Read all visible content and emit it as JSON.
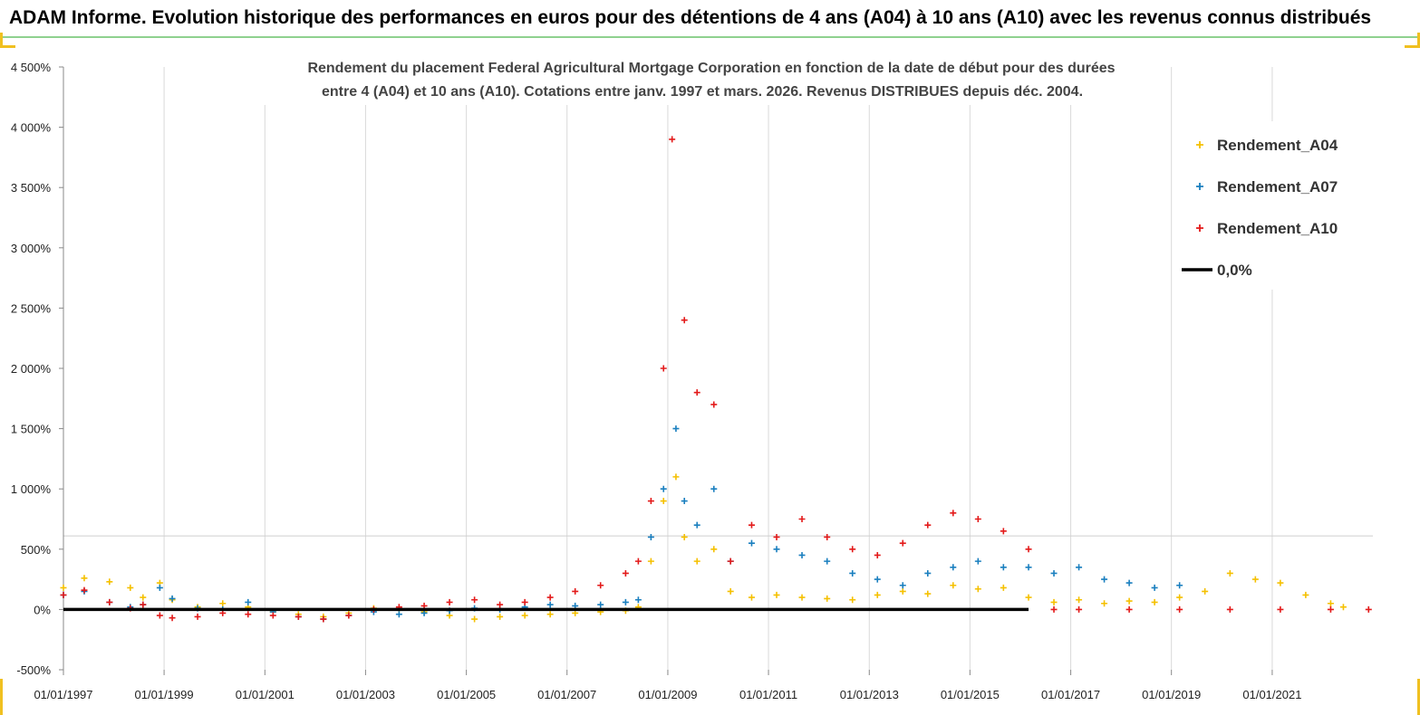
{
  "header": {
    "title": "ADAM Informe. Evolution historique des performances en euros pour des détentions de 4 ans (A04) à 10 ans (A10) avec les revenus connus distribués"
  },
  "chart_data": {
    "type": "scatter",
    "title": "Rendement du placement Federal Agricultural Mortgage Corporation en fonction de la date de début pour des durées entre 4 (A04) et 10 ans (A10). Cotations entre janv. 1997 et mars. 2026. Revenus DISTRIBUES depuis déc. 2004.",
    "title_lines": [
      "Rendement du placement Federal Agricultural Mortgage Corporation en fonction de la date de début pour des durées",
      "entre 4 (A04) et 10 ans (A10). Cotations entre janv. 1997 et mars. 2026. Revenus DISTRIBUES depuis déc. 2004."
    ],
    "xlabel": "",
    "ylabel": "",
    "x_range": [
      "1997-01-01",
      "2023-01-01"
    ],
    "ylim": [
      -500,
      4500
    ],
    "y_ticks": [
      -500,
      0,
      500,
      1000,
      1500,
      2000,
      2500,
      3000,
      3500,
      4000,
      4500
    ],
    "y_tick_labels": [
      "-500%",
      "0%",
      "500%",
      "1 000%",
      "1 500%",
      "2 000%",
      "2 500%",
      "3 000%",
      "3 500%",
      "4 000%",
      "4 500%"
    ],
    "x_tick_labels": [
      "01/01/1997",
      "01/01/1999",
      "01/01/2001",
      "01/01/2003",
      "01/01/2005",
      "01/01/2007",
      "01/01/2009",
      "01/01/2011",
      "01/01/2013",
      "01/01/2015",
      "01/01/2017",
      "01/01/2019",
      "01/01/2021"
    ],
    "grid": "vertical",
    "legend_position": "top-right",
    "series": [
      {
        "name": "Rendement_A04",
        "color": "#f5c000",
        "marker": "plus",
        "points": [
          [
            "1997-01-01",
            180
          ],
          [
            "1997-06-01",
            260
          ],
          [
            "1997-12-01",
            230
          ],
          [
            "1998-05-01",
            180
          ],
          [
            "1998-08-01",
            100
          ],
          [
            "1998-12-01",
            220
          ],
          [
            "1999-03-01",
            80
          ],
          [
            "1999-09-01",
            20
          ],
          [
            "2000-03-01",
            50
          ],
          [
            "2000-09-01",
            20
          ],
          [
            "2001-03-01",
            -20
          ],
          [
            "2001-09-01",
            -40
          ],
          [
            "2002-03-01",
            -60
          ],
          [
            "2002-09-01",
            -30
          ],
          [
            "2003-03-01",
            10
          ],
          [
            "2003-09-01",
            0
          ],
          [
            "2004-03-01",
            -20
          ],
          [
            "2004-09-01",
            -50
          ],
          [
            "2005-03-01",
            -80
          ],
          [
            "2005-09-01",
            -60
          ],
          [
            "2006-03-01",
            -50
          ],
          [
            "2006-09-01",
            -40
          ],
          [
            "2007-03-01",
            -30
          ],
          [
            "2007-09-01",
            -20
          ],
          [
            "2008-03-01",
            -10
          ],
          [
            "2008-06-01",
            20
          ],
          [
            "2008-09-01",
            400
          ],
          [
            "2008-12-01",
            900
          ],
          [
            "2009-03-01",
            1100
          ],
          [
            "2009-05-01",
            600
          ],
          [
            "2009-08-01",
            400
          ],
          [
            "2009-12-01",
            500
          ],
          [
            "2010-04-01",
            150
          ],
          [
            "2010-09-01",
            100
          ],
          [
            "2011-03-01",
            120
          ],
          [
            "2011-09-01",
            100
          ],
          [
            "2012-03-01",
            90
          ],
          [
            "2012-09-01",
            80
          ],
          [
            "2013-03-01",
            120
          ],
          [
            "2013-09-01",
            150
          ],
          [
            "2014-03-01",
            130
          ],
          [
            "2014-09-01",
            200
          ],
          [
            "2015-03-01",
            170
          ],
          [
            "2015-09-01",
            180
          ],
          [
            "2016-03-01",
            100
          ],
          [
            "2016-09-01",
            60
          ],
          [
            "2017-03-01",
            80
          ],
          [
            "2017-09-01",
            50
          ],
          [
            "2018-03-01",
            70
          ],
          [
            "2018-09-01",
            60
          ],
          [
            "2019-03-01",
            100
          ],
          [
            "2019-09-01",
            150
          ],
          [
            "2020-03-01",
            300
          ],
          [
            "2020-09-01",
            250
          ],
          [
            "2021-03-01",
            220
          ],
          [
            "2021-09-01",
            120
          ],
          [
            "2022-03-01",
            50
          ],
          [
            "2022-06-01",
            20
          ]
        ]
      },
      {
        "name": "Rendement_A07",
        "color": "#1a7fbf",
        "marker": "plus",
        "points": [
          [
            "1997-01-01",
            120
          ],
          [
            "1997-06-01",
            150
          ],
          [
            "1997-12-01",
            60
          ],
          [
            "1998-05-01",
            20
          ],
          [
            "1998-08-01",
            40
          ],
          [
            "1998-12-01",
            180
          ],
          [
            "1999-03-01",
            90
          ],
          [
            "1999-09-01",
            10
          ],
          [
            "2000-03-01",
            0
          ],
          [
            "2000-09-01",
            60
          ],
          [
            "2001-03-01",
            -20
          ],
          [
            "2001-09-01",
            -60
          ],
          [
            "2002-03-01",
            -80
          ],
          [
            "2002-09-01",
            -50
          ],
          [
            "2003-03-01",
            -20
          ],
          [
            "2003-09-01",
            -40
          ],
          [
            "2004-03-01",
            -30
          ],
          [
            "2004-09-01",
            -10
          ],
          [
            "2005-03-01",
            10
          ],
          [
            "2005-09-01",
            0
          ],
          [
            "2006-03-01",
            20
          ],
          [
            "2006-09-01",
            40
          ],
          [
            "2007-03-01",
            30
          ],
          [
            "2007-09-01",
            40
          ],
          [
            "2008-03-01",
            60
          ],
          [
            "2008-06-01",
            80
          ],
          [
            "2008-09-01",
            600
          ],
          [
            "2008-12-01",
            1000
          ],
          [
            "2009-03-01",
            1500
          ],
          [
            "2009-05-01",
            900
          ],
          [
            "2009-08-01",
            700
          ],
          [
            "2009-12-01",
            1000
          ],
          [
            "2010-04-01",
            400
          ],
          [
            "2010-09-01",
            550
          ],
          [
            "2011-03-01",
            500
          ],
          [
            "2011-09-01",
            450
          ],
          [
            "2012-03-01",
            400
          ],
          [
            "2012-09-01",
            300
          ],
          [
            "2013-03-01",
            250
          ],
          [
            "2013-09-01",
            200
          ],
          [
            "2014-03-01",
            300
          ],
          [
            "2014-09-01",
            350
          ],
          [
            "2015-03-01",
            400
          ],
          [
            "2015-09-01",
            350
          ],
          [
            "2016-03-01",
            350
          ],
          [
            "2016-09-01",
            300
          ],
          [
            "2017-03-01",
            350
          ],
          [
            "2017-09-01",
            250
          ],
          [
            "2018-03-01",
            220
          ],
          [
            "2018-09-01",
            180
          ],
          [
            "2019-03-01",
            200
          ]
        ]
      },
      {
        "name": "Rendement_A10",
        "color": "#e31a1a",
        "marker": "plus",
        "points": [
          [
            "1997-01-01",
            120
          ],
          [
            "1997-06-01",
            160
          ],
          [
            "1997-12-01",
            60
          ],
          [
            "1998-05-01",
            10
          ],
          [
            "1998-08-01",
            40
          ],
          [
            "1998-12-01",
            -50
          ],
          [
            "1999-03-01",
            -70
          ],
          [
            "1999-09-01",
            -60
          ],
          [
            "2000-03-01",
            -30
          ],
          [
            "2000-09-01",
            -40
          ],
          [
            "2001-03-01",
            -50
          ],
          [
            "2001-09-01",
            -60
          ],
          [
            "2002-03-01",
            -80
          ],
          [
            "2002-09-01",
            -50
          ],
          [
            "2003-03-01",
            0
          ],
          [
            "2003-09-01",
            20
          ],
          [
            "2004-03-01",
            30
          ],
          [
            "2004-09-01",
            60
          ],
          [
            "2005-03-01",
            80
          ],
          [
            "2005-09-01",
            40
          ],
          [
            "2006-03-01",
            60
          ],
          [
            "2006-09-01",
            100
          ],
          [
            "2007-03-01",
            150
          ],
          [
            "2007-09-01",
            200
          ],
          [
            "2008-03-01",
            300
          ],
          [
            "2008-06-01",
            400
          ],
          [
            "2008-09-01",
            900
          ],
          [
            "2008-12-01",
            2000
          ],
          [
            "2009-02-01",
            3900
          ],
          [
            "2009-05-01",
            2400
          ],
          [
            "2009-08-01",
            1800
          ],
          [
            "2009-12-01",
            1700
          ],
          [
            "2010-04-01",
            400
          ],
          [
            "2010-09-01",
            700
          ],
          [
            "2011-03-01",
            600
          ],
          [
            "2011-09-01",
            750
          ],
          [
            "2012-03-01",
            600
          ],
          [
            "2012-09-01",
            500
          ],
          [
            "2013-03-01",
            450
          ],
          [
            "2013-09-01",
            550
          ],
          [
            "2014-03-01",
            700
          ],
          [
            "2014-09-01",
            800
          ],
          [
            "2015-03-01",
            750
          ],
          [
            "2015-09-01",
            650
          ],
          [
            "2016-03-01",
            500
          ],
          [
            "2016-09-01",
            0
          ],
          [
            "2017-03-01",
            0
          ],
          [
            "2018-03-01",
            0
          ],
          [
            "2019-03-01",
            0
          ],
          [
            "2020-03-01",
            0
          ],
          [
            "2021-03-01",
            0
          ],
          [
            "2022-03-01",
            0
          ],
          [
            "2022-12-01",
            0
          ]
        ]
      },
      {
        "name": "0,0%",
        "color": "#000000",
        "marker": "line",
        "points": [
          [
            "1997-01-01",
            0
          ],
          [
            "2016-03-01",
            0
          ]
        ]
      }
    ]
  }
}
